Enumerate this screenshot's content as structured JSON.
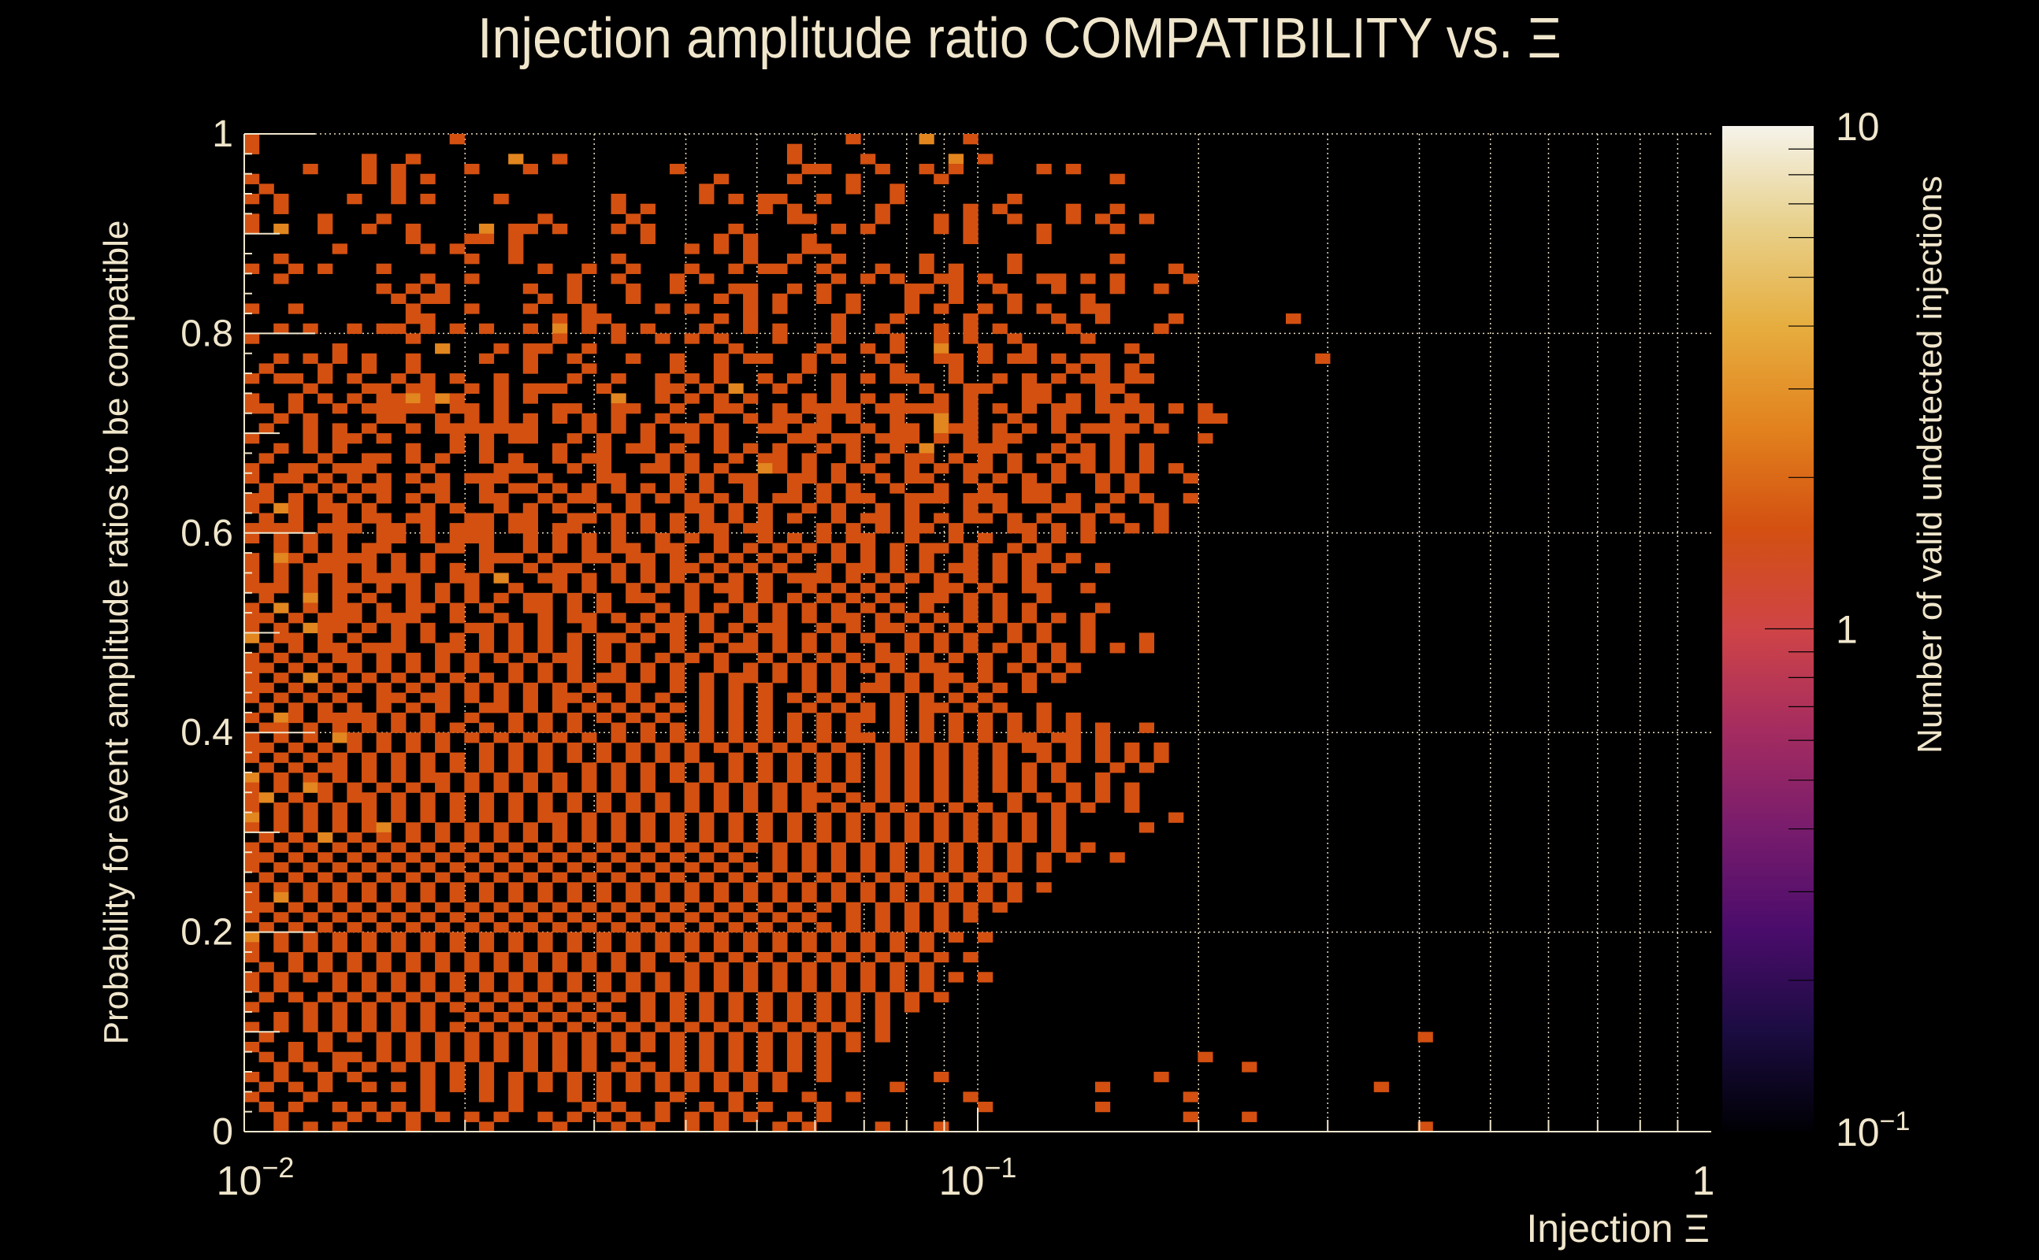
{
  "chart_data": {
    "type": "heatmap",
    "title": "Injection amplitude ratio COMPATIBILITY vs.  Ξ",
    "xlabel": "Injection Ξ",
    "ylabel": "Probability for event amplitude ratios to be compatible",
    "zlabel": "Number of valid undetected injections",
    "x_scale": "log",
    "xlim": [
      0.01,
      1
    ],
    "ylim": [
      0,
      1
    ],
    "zlim": [
      0.1,
      10
    ],
    "z_scale": "log",
    "x_bins": 100,
    "y_bins": 100,
    "grid": true,
    "x_ticks": [
      {
        "value": 0.01,
        "label": "10",
        "exp": "−2"
      },
      {
        "value": 0.1,
        "label": "10",
        "exp": "−1"
      },
      {
        "value": 1,
        "label": "1",
        "exp": ""
      }
    ],
    "y_ticks": [
      {
        "value": 0,
        "label": "0"
      },
      {
        "value": 0.2,
        "label": "0.2"
      },
      {
        "value": 0.4,
        "label": "0.4"
      },
      {
        "value": 0.6,
        "label": "0.6"
      },
      {
        "value": 0.8,
        "label": "0.8"
      },
      {
        "value": 1,
        "label": "1"
      }
    ],
    "z_ticks": [
      {
        "value": 0.1,
        "label": "10",
        "exp": "−1"
      },
      {
        "value": 1,
        "label": "1",
        "exp": ""
      },
      {
        "value": 10,
        "label": "10",
        "exp": ""
      }
    ],
    "colormap": [
      "#000004",
      "#1b0c41",
      "#4a0c6b",
      "#781c6d",
      "#a52c60",
      "#cf4446",
      "#d35011",
      "#e2821e",
      "#e6ad3e",
      "#e8d08a",
      "#f5f3ea"
    ],
    "rows_note": "rows from y=1 (top) downward; char = count per bin, '.' = 0",
    "rows": [
      "1.............1..........................1....2..1.............",
      "1....................................1............................",
      "........1..1......2..1...............1....1.....2.1...............",
      "....1...1.1....1...1.........1........11...1..1.1.....1.1.........",
      "1.......1.1.1...................1....1...1.....1...........1......",
      ".1........1....................1.........1..1...............",
      "1.1....1..1.1....1.......1.....1.1.11..1....1.......1.............",
      "..1......................1.1.......1.1.....1.....1.1....1..1......",
      "1....1...1..........1.....1..........11....1...1.1..1...1.1..1....",
      "1.2..1..1..1....2.11.1...1.1.....1......1.1....1.1....1....1......",
      "...........1...11.1........1....1.1...1..........1....1...........",
      "......1.....1.1...1...........1.1.1...11.........................",
      "..1............1..1......1........1..1..1.....1.....1......1.....",
      "1..1.1...1..........1..1..1...1..1.11..1...1..1.1...1..........1..",
      "..1.........1..1......1..1...1.1........1.1.1..11.1...11.1.1....1.",
      ".........1.1.1.....1..1...1..1...11..1.1.....11.1..1...1...1..1...",
      "..........1.11......1.1...1.....1.1.1..1.1...1..1...1....1........",
      "1..1.......1...1...1...1....1.1...1.1....1...1.1..1.1.1..11.......",
      "...........11........1.11.......1.1.....1...1....1.....1..1....1..",
      "..1.1..1.11.1.1.1..1.2.1.1.1...1..1.1...1..1...1.1.1....1.....1...",
      "1..........1.........1...1..1.1.1...1...1...1..1.1..1....1........",
      "......1......2...1.11..1.........1.....1..1.1..2..1..1......1.....",
      "..1.1.1.1..1....1..1..1...1..1..1.11..1.1..1...11.1.11.1.11..1....",
      ".1...1..1..1.......1...1.....1..1.....1.....1...1.......1.1.1.....",
      "1.11.1.1..1.1.1..1....1..1..1.1.1..1.1..1.1.11..1..1.1.1.11.11....",
      "....1...11.11..1.1.111..1...11.1.2..1...1.....1..11..11...11......",
      "1..1.1.1.112121..1.1.....2..1.1.1.1...1.1.1.1..1.1...11.1.1.1.....",
      "11.1..1.11111.11.1...11..11..1..11..1.1111.11111.1.1.1.11.1111.1.1",
      "..1.1....11..1.1.1.1.1.1.1..1..1..1.11.1.1..1..2.1..1..1...1.1...11",
      ".1..1.1.1..1.1111111...1.1.1.11.1..11.11..1.11.211.1.1.1.1111.1....",
      "1...1.11.1....1.1.11..1.1..1..1.1....11.11.111.1.1.11...1..1.....1.",
      "..1.1.1....1..1.1....1..1.11.1..1.1.1..1.1..1.2..111...1.1.1.1.....",
      ".1...1..11.1.1..1.1..1.11...1.1..1.11.1..1.1.11.1.1.1.1.11.1.1.....",
      "1..11.111...1....111..1.1..11.1.1..21.1.1.1..1.1.11.1..1.1.1.1.1...",
      "1.11.1.1.1.1.1.111..1...11...1.1.11..11.1..1.11..1.1.1.1..1.1...1.",
      ".1..1.1.11..11..1.11.1.1.1.1.1.1..1..1.1.1..1..1..1..11...1.1.....",
      "11.1.1.1.1.1.1..11..1.11..1.1.1.1.1.11.1.11..111.111.11.1..1.1..1.",
      "1.21.11.1...1.1..1.1.1..1.1...11.1.1..1.1..1.1...1.1...11.1...1...",
      ".1.1..1.11.11..11.11..11.1.1.1.1.1.1.1..1.11.1.1.11.1.1..1.1..1...",
      "1111.111.11.1.111.11.11..1.1.1.11.11...1.1.1.11.1...11.1.1..1.1...",
      "1.1.1.1..11.1.111..1.1.1.1..1.1.1..1.1.1.11..1..1.1..1.1.1........",
      "..1.1.1.11...11.1..1.1.1.11.11..1.1.1.1.1.1.1.11.1..1.1...........",
      "1.21.1111.1.1...111.1..11.11.1.1.1.1.1..1.1.1.1..1.1.11.1.........",
      "1.1.111.1.1.1.1.1..1.11..1.1.11.1.1.1..1.11.1.1.11.1.1.1..1.......",
      "1.1.1.1.1111..11.2..11.1.1.1.1.1.1.1.111.1.1.1.1.1.1.1............",
      "111.1.11.1.1.1.1..1..1.1..1.1.1.11.1..1.1.1.1..11.1..11..1........",
      ".1..2.1.1..1.1.1.1.11.1.1.11..1..1.1.1.1.1.1..11.1.1..1...........",
      "1.2.1.11.1.11.1.1..11.1.1...1.1.1.1.1.1.1.1.1.1..1.1.1....1.......",
      "11.1.111.111..1..1..1.11.1.1.1.1..1.1.1.11.1.1.1.1.1.1.1.1........",
      "1.1.211.1.1.1..11.1.1..1..1.11.1.1.11..1.1.11.1.1.1.1.1..1........",
      "2.11.1.1..1.1.1.1.1.1.1.11.1.1..1.1.1.1.1.1..1.1.1..1.1..1...1....",
      ".1.1.11.111..11.1.1.1.1.1.1..1.1.11.1.1.1..1.1.1.1.1.1.1.1.1.1....",
      "1.1.1.11.1.1.1.1.1.1.11.1.1.1.1.1..1.1.1.1.11.1.1.1..1.1..........",
      "11.1.1.1.1.1.1.1..1.1.1..1.1.1..1.1.1.1.1.1.1.11..1.1.1.1.........",
      "1.1.2.1.1.1.1.1.1.1.1.1.11.1.1.1.11.1.1.1..1.1.11.1..1.1..........",
      "11.1.1.1.1.1.1.1.1.1.1.1..1..1.1.1.1..1.1.11.1.1.1.1.1............",
      "1.1.1.1..11.11.1.1.1.11.1.1.1..1.1.1.1.1.1..1.1.1.1...............",
      ".1.1.1.1.1.1.1..11.1.1.1.1.1.1.1.1.1..1.1.1.1.11.1.1..1...........",
      "1.21.1111.1.1..1..1.1.1.1.1.1..1.1.1.1.1.11.1.1.1.1.1.1.1.........",
      ".11.1.1.1.1.1.1.1.1.1.1..1.1.1.1.1.1.1.1.1..1.1.1.1.1.1.1.1..1....",
      "1.1.1.21.1.1.1.1.1.1.1.1.1.1.1.1.1.1.1.1.11.1.1.1.1.11.11.1.......",
      "11.1.1.1.1.1.1..1.1.1.1.1.1.1.1.1.1.1.1.1..1.1.1.1.1.11.1.1.1.1...",
      "1.1.1.1.1.1.1.1.1.1.1.1.1.1.1.1..1.1.1.1.1.1.1.1.1.1..1.1.1.1.1...",
      ".1.1.11.1.1.1.1.1.1.1..1.1.1.1.1.1.1.1.1.1.1.1.1.1.1.1.1...1.1....",
      "2.1.1.1.1.1.11.1.1.1.1.1.1.1.1.1.1.1.1.1.1.1.1.1.1.1.1.1..1.......",
      "1.1.21.1.1.1.1.1.1.1.1.1.1.1..1.1.1.1.1.1..1.1.1.1.1.1..1.1.1.....",
      "12.1.1.11.1.1.1.1.1.1.1.1.1.1.1.1.1.1.11.1.1.1.1.1..1.1.1.1.1.....",
      "1.1.1.1.1.1.1.1.1.1.1.1.1.1.1.1.1.1.1.1.1.1.1.1.1.1.1..1.1..1.....",
      "2.1.1.1.1.1.1.1.1.1.11.1.1.1.1.1.1.1.1.1.1.1.1.1.1.1.1.1.......1..",
      "1.1.1.1.12.1.1.1.1.1.1.1.1.1.1.1.1.1.1.1.1.1.1.1.1.1.1.1.....1....",
      ".1.1.2.1.1.1.1.1.1.1.1.1.1.1.1.1.1.1.1.1.1.1.1.1.1.1.1.1..........",
      "1.1.1.1.1.1.1.1.1.1.1.1.1.1.1.1.1.1.1.1.1.1.1.1.1.1.1..1.1........",
      "11.1.1.1.1.1.1.1.1.1.1.1.1.1.1.1.1..1.1.1.1.1.1.1.1.1.1.1..1......",
      "1.1.1.1.1.1.1.1.1.1.1.1.1.1.1.1.1.1.1.1.1.1.1.1.1.1.1.1...........",
      ".1.1.1.1.1.1.1.1.1.1.1.1.1.1.1.1.1.1.1.1.1.1.1.1.1.1..............",
      "1.1.1.1.1.1.1.1.1.1.1.1.1.1.1.1.1.1.1.1.1.1.1.1.1.1.1.1...........",
      "1.2.1.1.1.1.1.1.1.1.1.1.1.1.1.1.1.1.1.1.1.1.1.1.1.1.1.............",
      "11.1.1.1.1.1.1.1.1.1.1.1.1.1.1.1.1.1.1.1.1.1.1.1.1.1..............",
      "1.1.1.1.1.1.1.1.1.1.1.1.1.1.1.1.1.1.1.1..1.1.1.1.1................",
      ".1.1.1.1.1.1.1.1.1.1.1.1.1.1.1.1.1.1.1.1.1.1.1.1..................",
      "2.1.1.1.1.1.1.1.1.1.1.1.1.1.1.1.1.1.1.1.1.1.1.1.1.1...............",
      "1.1.1.1.1.1.1.1.1.1.1.1.1.1.1.1.1.1.1.1.1.1.1.1...................",
      "1..1.1.1.1.1.1.1.1.1.1.1.1.1.1.1.1.1.1.1.1.1.1.1.1................",
      ".1.1.1.1.1.1.1.1.1.1.1.1.1.1..1.1.1.1.1.1.1.1.1....................",
      "1.1.1.1.1.1.1.1.1.1.1.1.1.1.1.1.1.1.1.1.1.1.1.1.1.1................",
      "1.1...1.1.1.1.1.1.1.1.1.1.1.1.1.1.1.1.1.1.1.1.1...................",
      ".1.1.1.1.1.1.1.1.1.1.1.1.1.1.1.1.1.1.1.1.1.1.1.1....................",
      "1...1.1.1.1.1.1.1.1.1.1.1..1.1.1.1.1.1.1.1.1.1.....................",
      "..1.1.1.1.1.1..1.1.1.1.1.1.1.1.1.1.1.1.1.1.1...........................",
      "1.1.1.1.1.1.1.1.1.1.1.1.1.1.1.1.1.1.1.1.1..1.........................",
      ".1...1.1.1.1.1.1.1.1.1.1.1.1.1.1.1.1.1.1.1.1...........................",
      "1..1.1...1.1.1.1.1.1.1.1.1.1.1.1.1.1.1.1.1..............................",
      ".1.1..11.1.1.1.1.1.1.1.1..1..1.1.1.1.1.1.........................1......",
      "..1.1.1.1.1.1.1.1..1.1.1.1.1.1.1.1.1.1.1............................1...",
      "1.1..1.1....1.1.1.1.1.1.1.1.1.1.1.1.1..1.......1..............1......",
      ".1.1.1..1.1.1.1.1.1.1.1.1.1.1.1.1.1.1.......1.............1...........",
      "1...1.......1...1.1...1.1....1...1....1..1.......1..............1.....",
      ".1.1..1.1.1.1.....1....1.1..1..1.1.1...1..........1.......1.........",
      "..1....1.1.1.1.1.1..1.1.1.1.1.1.1.1..1.1........................1...1",
      "..1.1.1....1....1....1...1.1..1.1...1.1....1...1...................",
      "..1..1.....1..1...1.....1.1..1..1..1..1.......................1.....",
      "...1..232211......2.....1.1..1.1...1...........1............1......1"
    ],
    "sparse_cells": [
      {
        "x": 0.4,
        "y": 0.095,
        "count": 1
      },
      {
        "x": 0.36,
        "y": 0.045,
        "count": 1
      },
      {
        "x": 0.41,
        "y": 0.005,
        "count": 1
      },
      {
        "x": 0.27,
        "y": 0.815,
        "count": 1
      },
      {
        "x": 0.29,
        "y": 0.775,
        "count": 1
      }
    ]
  }
}
